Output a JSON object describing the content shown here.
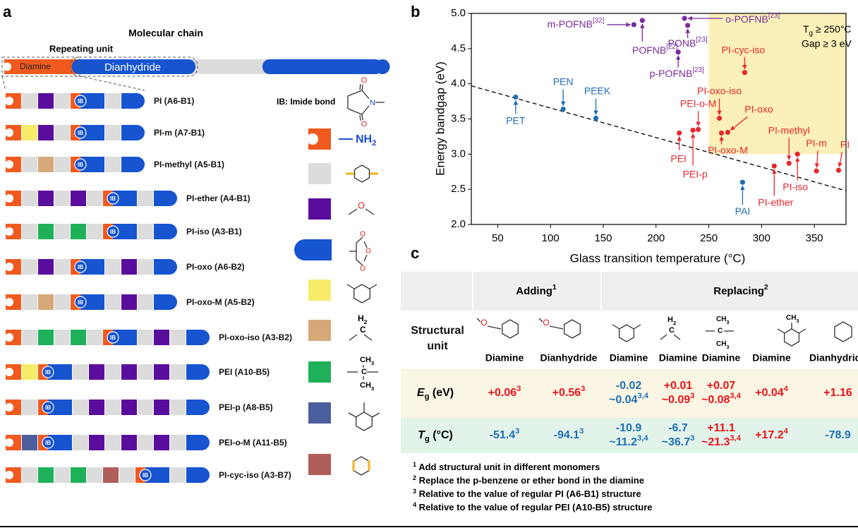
{
  "panel_labels": [
    "a",
    "b",
    "c"
  ],
  "panel_a": {
    "molecular_chain": "Molecular chain",
    "repeating_unit": "Repeating unit",
    "diamine": "Diamine",
    "dianhydride": "Dianhydride",
    "ib": "IB",
    "polymers": [
      "PI (A6-B1)",
      "PI-m (A7-B1)",
      "PI-methyl (A5-B1)",
      "PI-ether (A4-B1)",
      "PI-iso (A3-B1)",
      "PI-oxo (A6-B2)",
      "PI-oxo-M (A5-B2)",
      "PI-oxo-iso (A3-B2)",
      "PEI (A10-B5)",
      "PEI-p (A8-B5)",
      "PEI-o-M (A11-B5)",
      "PI-cyc-iso (A3-B7)"
    ],
    "legend": {
      "imide_bond": "IB: Imide bond",
      "imide_atoms": [
        "O",
        "N",
        "O"
      ],
      "amine": {
        "text": "NH",
        "sub": "2"
      },
      "ether_atom": "O",
      "anhydride_atoms": [
        "O",
        "O",
        "O"
      ],
      "methylene": [
        {
          "text": "H",
          "sub": "2"
        },
        "C"
      ],
      "dimethyl": [
        {
          "text": "CH",
          "sub": "3"
        },
        "C",
        {
          "text": "CH",
          "sub": "3"
        }
      ]
    }
  },
  "chart_data": {
    "type": "scatter",
    "x_label": "Glass transition temperature (°C)",
    "y_label": "Energy bandgap (eV)",
    "xlim": [
      25,
      380
    ],
    "ylim": [
      2,
      5
    ],
    "xticks": [
      50,
      100,
      150,
      200,
      250,
      300,
      350
    ],
    "yticks": [
      {
        "value": 2,
        "label": "2.0"
      },
      {
        "value": 2.5,
        "label": "2.5"
      },
      {
        "value": 3,
        "label": "3.0"
      },
      {
        "value": 3.5,
        "label": "3.5"
      },
      {
        "value": 4,
        "label": "4.0"
      },
      {
        "value": 4.5,
        "label": "4.5"
      },
      {
        "value": 5,
        "label": "5.0"
      }
    ],
    "highlight": {
      "x": 250,
      "y": 3,
      "color": "#fbf0b8"
    },
    "annotation": [
      {
        "text": "T",
        "sub": "g",
        "rest": " ≥ 250°C"
      },
      "Gap ≥ 3 eV"
    ],
    "trend_line": {
      "x": [
        25,
        380
      ],
      "values": [
        3.97,
        2.48
      ]
    },
    "series": [
      {
        "color": "#1f6db3",
        "x": [
          67,
          112,
          143,
          282
        ],
        "values": [
          3.81,
          3.64,
          3.51,
          2.6
        ],
        "labels": [
          {
            "text": "PET"
          },
          {
            "text": "PEN"
          },
          {
            "text": "PEEK"
          },
          {
            "text": "PAI"
          }
        ]
      },
      {
        "color": "#7a2a9c",
        "x": [
          179,
          187,
          227,
          230,
          221
        ],
        "values": [
          4.84,
          4.9,
          4.93,
          4.83,
          4.45
        ],
        "labels": [
          {
            "text": "m-POFNB",
            "sup": "[32]"
          },
          {
            "text": "POFNB",
            "sup": "[22]"
          },
          {
            "text": "o-POFNB",
            "sup": "[23]"
          },
          {
            "text": "PONB",
            "sup": "[23]"
          },
          {
            "text": "p-POFNB",
            "sup": "[23]"
          }
        ]
      },
      {
        "color": "#e8262c",
        "x": [
          284,
          260,
          268,
          262,
          240,
          235,
          222,
          312,
          326,
          334,
          352,
          373
        ],
        "values": [
          4.16,
          3.51,
          3.31,
          3.3,
          3.35,
          3.34,
          3.3,
          2.83,
          2.87,
          3.0,
          2.76,
          2.77
        ],
        "labels": [
          {
            "text": "PI-cyc-iso"
          },
          {
            "text": "PI-oxo-iso"
          },
          {
            "text": "PI-oxo"
          },
          {
            "text": "PI-oxo-M"
          },
          {
            "text": "PEI-o-M"
          },
          {
            "text": "PEI-p"
          },
          {
            "text": "PEI"
          },
          {
            "text": "PI-ether"
          },
          {
            "text": "PI-methyl"
          },
          {
            "text": "PI-iso"
          },
          {
            "text": "PI-m"
          },
          {
            "text": "PI"
          }
        ]
      }
    ]
  },
  "table": {
    "header": [
      {
        "text": "Adding",
        "sup": "1"
      },
      {
        "text": "Replacing",
        "sup": "2"
      }
    ],
    "structure_label": "Structural unit",
    "ether_atom": "O",
    "methylene": [
      {
        "text": "H",
        "sub": "2"
      },
      "C"
    ],
    "dimethyl": [
      {
        "text": "CH",
        "sub": "3"
      },
      "C",
      {
        "text": "CH",
        "sub": "3"
      }
    ],
    "methyl": {
      "text": "CH",
      "sub": "3"
    },
    "monomers": [
      "Diamine",
      "Dianhydride",
      "Diamine",
      "Diamine",
      "Diamine",
      "Diamine",
      "Dianhydride"
    ],
    "rows": [
      {
        "label": {
          "text": "E",
          "sub": "g",
          "rest": " (eV)"
        },
        "cells": [
          [
            {
              "text": "+0.06",
              "sup": "3"
            }
          ],
          [
            {
              "text": "+0.56",
              "sup": "3"
            }
          ],
          [
            {
              "text": "-0.02"
            },
            {
              "text": "~0.04",
              "sup": "3,4"
            }
          ],
          [
            {
              "text": "+0.01"
            },
            {
              "text": "~0.09",
              "sup": "3"
            }
          ],
          [
            {
              "text": "+0.07"
            },
            {
              "text": "~0.08",
              "sup": "3,4"
            }
          ],
          [
            {
              "text": "+0.04",
              "sup": "4"
            }
          ],
          [
            {
              "text": "+1.16"
            }
          ]
        ]
      },
      {
        "label": {
          "text": "T",
          "sub": "g",
          "rest": " (°C)"
        },
        "cells": [
          [
            {
              "text": "-51.4",
              "sup": "3"
            }
          ],
          [
            {
              "text": "-94.1",
              "sup": "3"
            }
          ],
          [
            {
              "text": "-10.9"
            },
            {
              "text": "~11.2",
              "sup": "3,4"
            }
          ],
          [
            {
              "text": "-6.7"
            },
            {
              "text": "~36.7",
              "sup": "3"
            }
          ],
          [
            {
              "text": "+11.1"
            },
            {
              "text": "~21.3",
              "sup": "3,4"
            }
          ],
          [
            {
              "text": "+17.2",
              "sup": "4"
            }
          ],
          [
            {
              "text": "-78.9"
            }
          ]
        ]
      }
    ]
  },
  "footnotes": [
    {
      "sup": "1",
      "text": " Add structural unit in different monomers"
    },
    {
      "sup": "2",
      "text": " Replace the p-benzene or ether bond in the diamine"
    },
    {
      "sup": "3",
      "text": " Relative to the value of  regular PI (A6-B1) structure"
    },
    {
      "sup": "4",
      "text": " Relative to the value of  regular PEI (A10-B5) structure"
    }
  ]
}
